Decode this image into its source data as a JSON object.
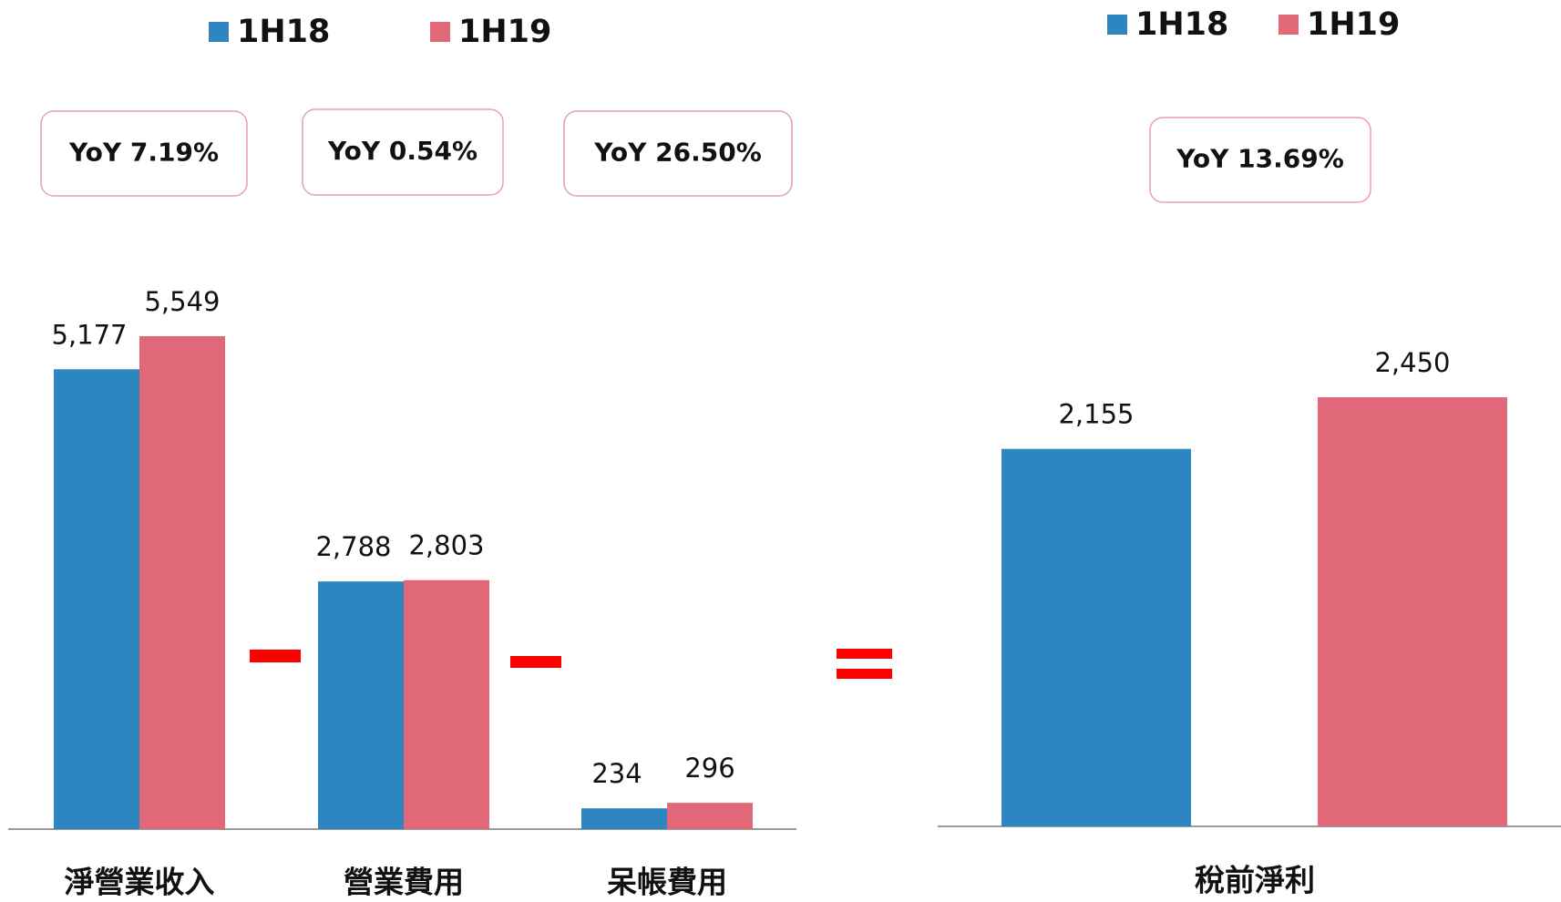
{
  "chart_data": [
    {
      "type": "bar",
      "categories": [
        "淨營業收入",
        "營業費用",
        "呆帳費用"
      ],
      "series": [
        {
          "name": "1H18",
          "color": "#2e86c1",
          "values": [
            5177,
            2788,
            234
          ],
          "value_labels": [
            "5,177",
            "2,788",
            "234"
          ]
        },
        {
          "name": "1H19",
          "color": "#e06878",
          "values": [
            5549,
            2803,
            296
          ],
          "value_labels": [
            "5,549",
            "2,803",
            "296"
          ]
        }
      ],
      "annotations": [
        "YoY 7.19%",
        "YoY 0.54%",
        "YoY 26.50%"
      ]
    },
    {
      "type": "bar",
      "categories": [
        "稅前淨利"
      ],
      "series": [
        {
          "name": "1H18",
          "color": "#2e86c1",
          "values": [
            2155
          ],
          "value_labels": [
            "2,155"
          ]
        },
        {
          "name": "1H19",
          "color": "#e06878",
          "values": [
            2450
          ],
          "value_labels": [
            "2,450"
          ]
        }
      ],
      "annotations": [
        "YoY 13.69%"
      ]
    }
  ]
}
